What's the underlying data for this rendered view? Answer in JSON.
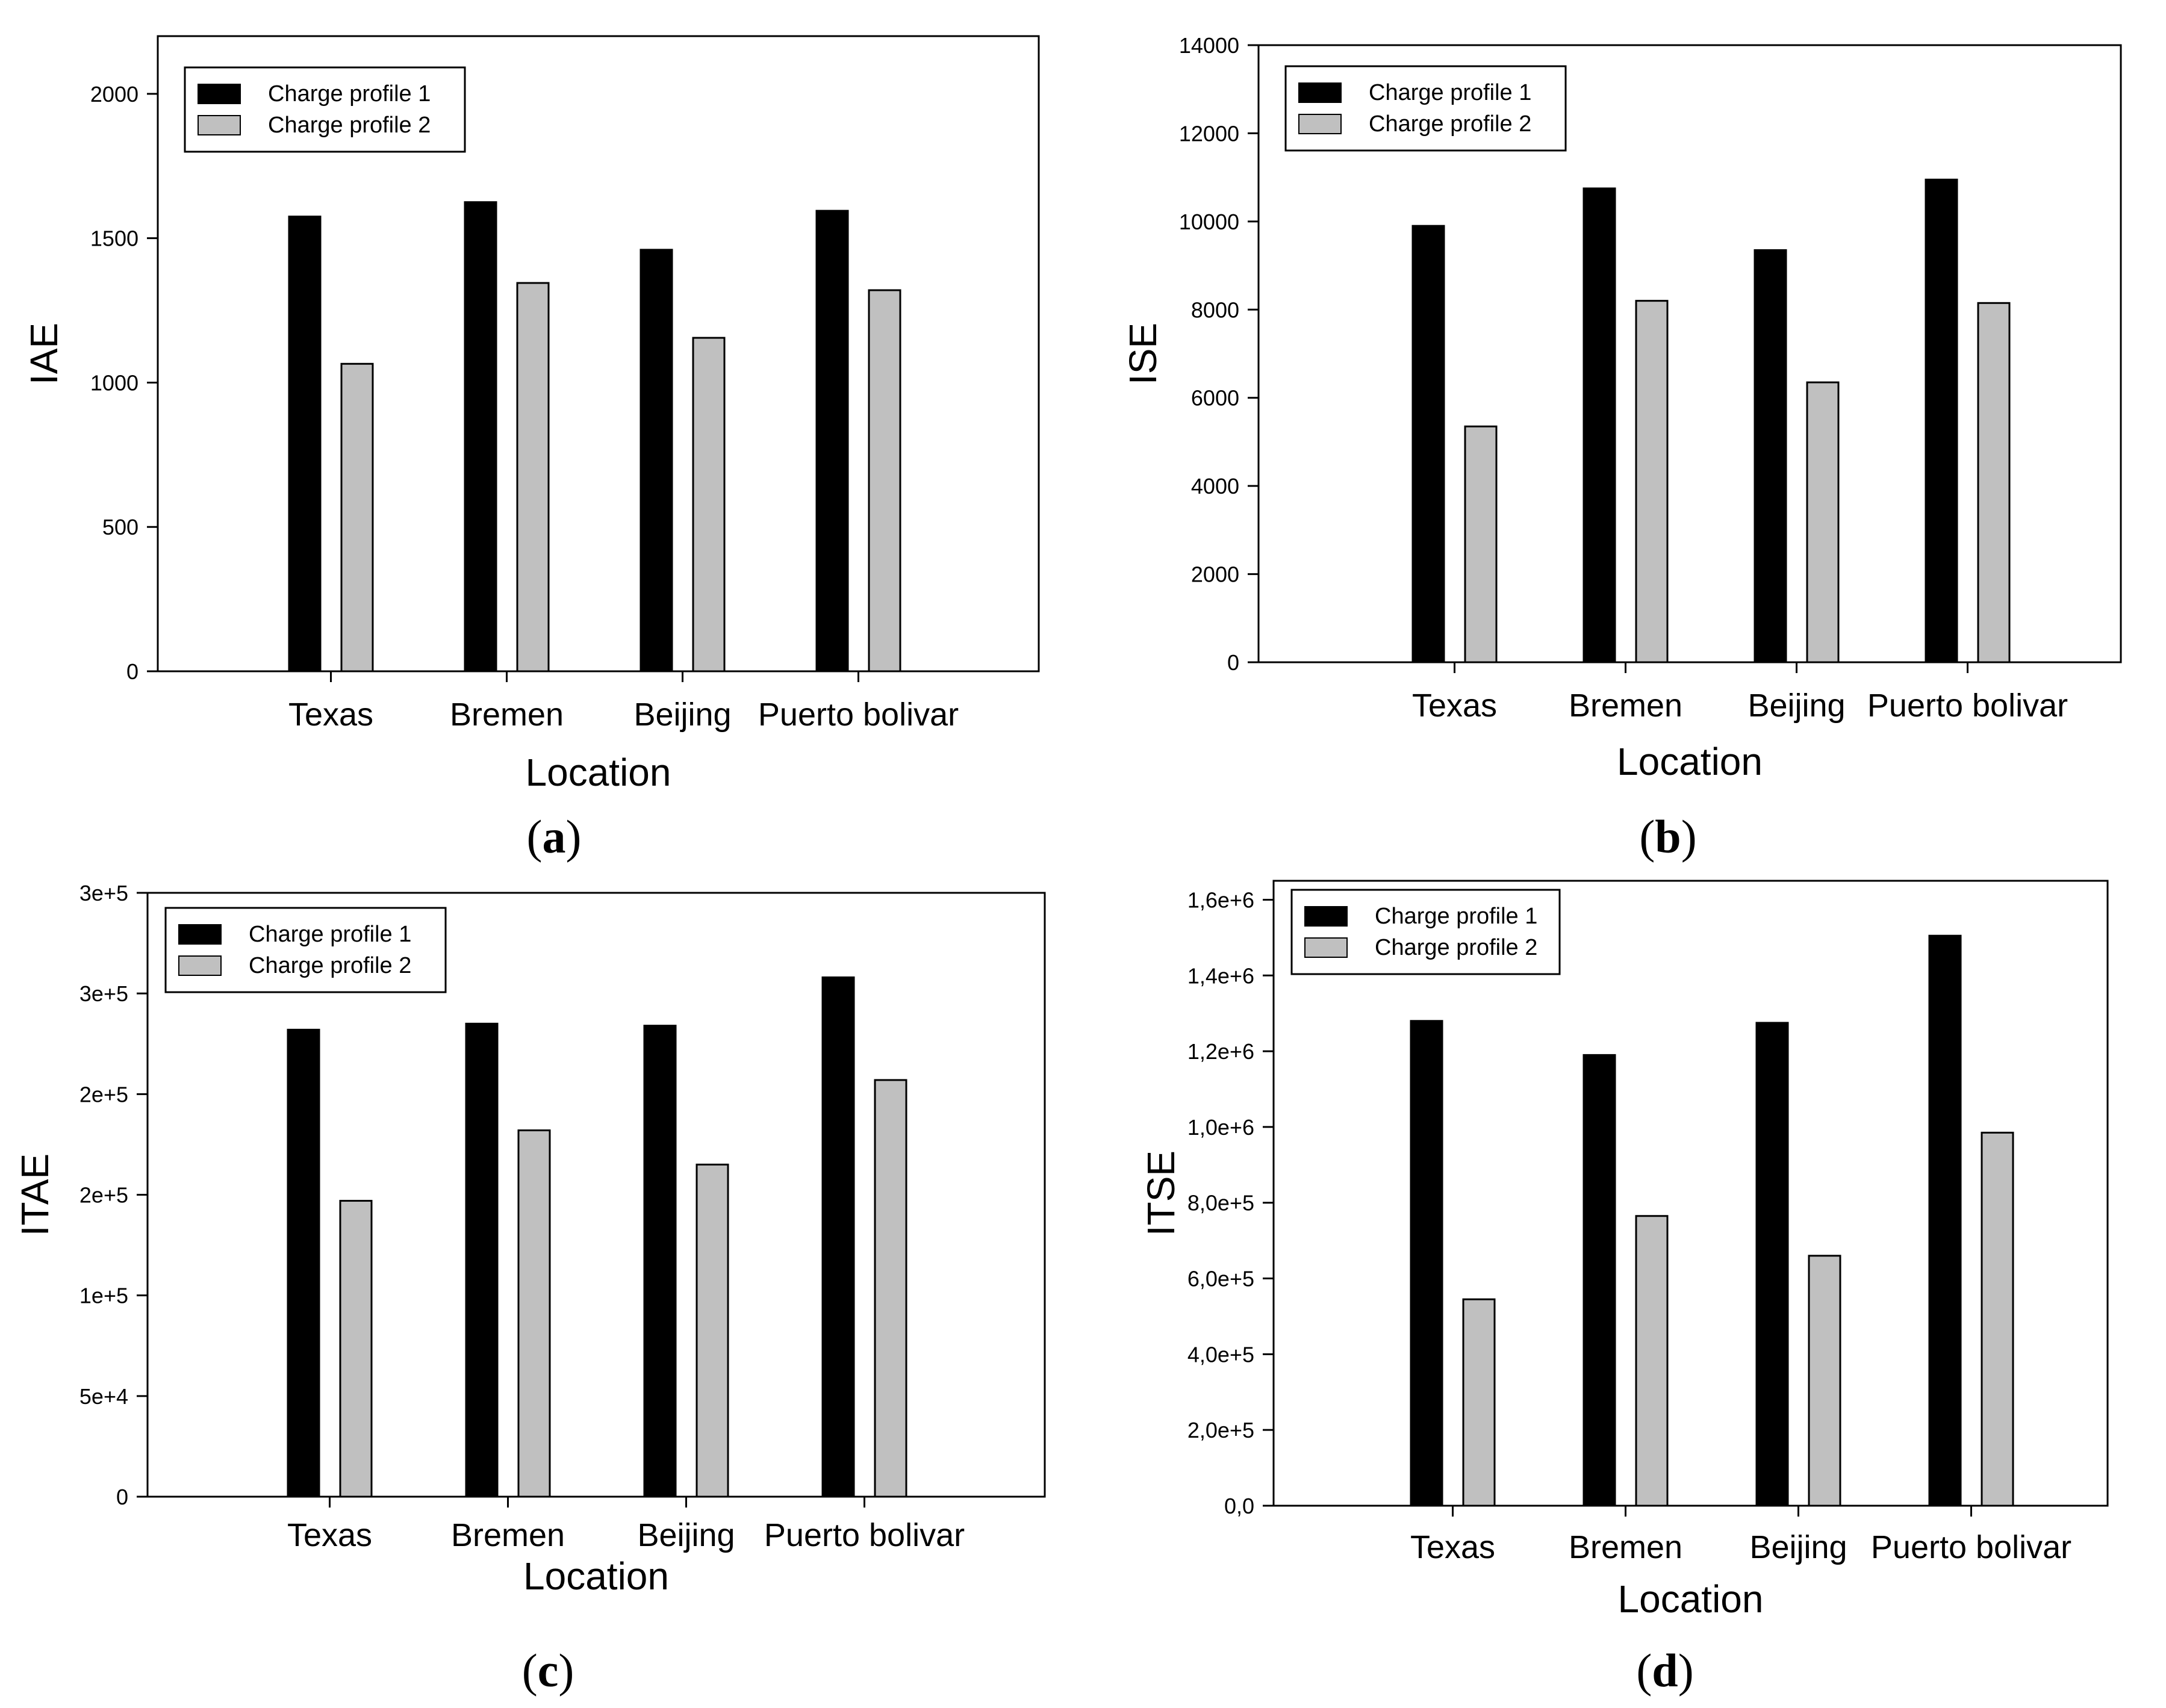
{
  "chart_data": [
    {
      "type": "bar",
      "panel_label": "a",
      "title": "",
      "xlabel": "Location",
      "ylabel": "IAE",
      "categories": [
        "Texas",
        "Bremen",
        "Beijing",
        "Puerto bolivar"
      ],
      "series": [
        {
          "name": "Charge profile 1",
          "color": "#000000",
          "values": [
            1575,
            1625,
            1460,
            1595
          ]
        },
        {
          "name": "Charge profile 2",
          "color": "#c0c0c0",
          "values": [
            1065,
            1345,
            1155,
            1320
          ]
        }
      ],
      "yticks": [
        "0",
        "500",
        "1000",
        "1500",
        "2000"
      ],
      "ytick_values": [
        0,
        500,
        1000,
        1500,
        2000
      ],
      "ylim": [
        0,
        2200
      ],
      "legend_position": "top-left",
      "grid": false
    },
    {
      "type": "bar",
      "panel_label": "b",
      "title": "",
      "xlabel": "Location",
      "ylabel": "ISE",
      "categories": [
        "Texas",
        "Bremen",
        "Beijing",
        "Puerto bolivar"
      ],
      "series": [
        {
          "name": "Charge profile 1",
          "color": "#000000",
          "values": [
            9900,
            10750,
            9350,
            10950
          ]
        },
        {
          "name": "Charge profile 2",
          "color": "#c0c0c0",
          "values": [
            5350,
            8200,
            6350,
            8150
          ]
        }
      ],
      "yticks": [
        "0",
        "2000",
        "4000",
        "6000",
        "8000",
        "10000",
        "12000",
        "14000"
      ],
      "ytick_values": [
        0,
        2000,
        4000,
        6000,
        8000,
        10000,
        12000,
        14000
      ],
      "ylim": [
        0,
        14000
      ],
      "legend_position": "top-left",
      "grid": false
    },
    {
      "type": "bar",
      "panel_label": "c",
      "title": "",
      "xlabel": "Location",
      "ylabel": "ITAE",
      "categories": [
        "Texas",
        "Bremen",
        "Beijing",
        "Puerto bolivar"
      ],
      "series": [
        {
          "name": "Charge profile 1",
          "color": "#000000",
          "values": [
            232000,
            235000,
            234000,
            258000
          ]
        },
        {
          "name": "Charge profile 2",
          "color": "#c0c0c0",
          "values": [
            147000,
            182000,
            165000,
            207000
          ]
        }
      ],
      "yticks": [
        "0",
        "5e+4",
        "1e+5",
        "2e+5",
        "2e+5",
        "3e+5",
        "3e+5"
      ],
      "ytick_values": [
        0,
        50000,
        100000,
        150000,
        200000,
        250000,
        300000
      ],
      "ylim": [
        0,
        300000
      ],
      "legend_position": "top-left",
      "grid": false
    },
    {
      "type": "bar",
      "panel_label": "d",
      "title": "",
      "xlabel": "Location",
      "ylabel": "ITSE",
      "categories": [
        "Texas",
        "Bremen",
        "Beijing",
        "Puerto bolivar"
      ],
      "series": [
        {
          "name": "Charge profile 1",
          "color": "#000000",
          "values": [
            1280000,
            1190000,
            1275000,
            1505000
          ]
        },
        {
          "name": "Charge profile 2",
          "color": "#c0c0c0",
          "values": [
            545000,
            765000,
            660000,
            985000
          ]
        }
      ],
      "yticks": [
        "0,0",
        "2,0e+5",
        "4,0e+5",
        "6,0e+5",
        "8,0e+5",
        "1,0e+6",
        "1,2e+6",
        "1,4e+6",
        "1,6e+6"
      ],
      "ytick_values": [
        0,
        200000,
        400000,
        600000,
        800000,
        1000000,
        1200000,
        1400000,
        1600000
      ],
      "ylim": [
        0,
        1650000
      ],
      "legend_position": "top-left",
      "grid": false
    }
  ]
}
